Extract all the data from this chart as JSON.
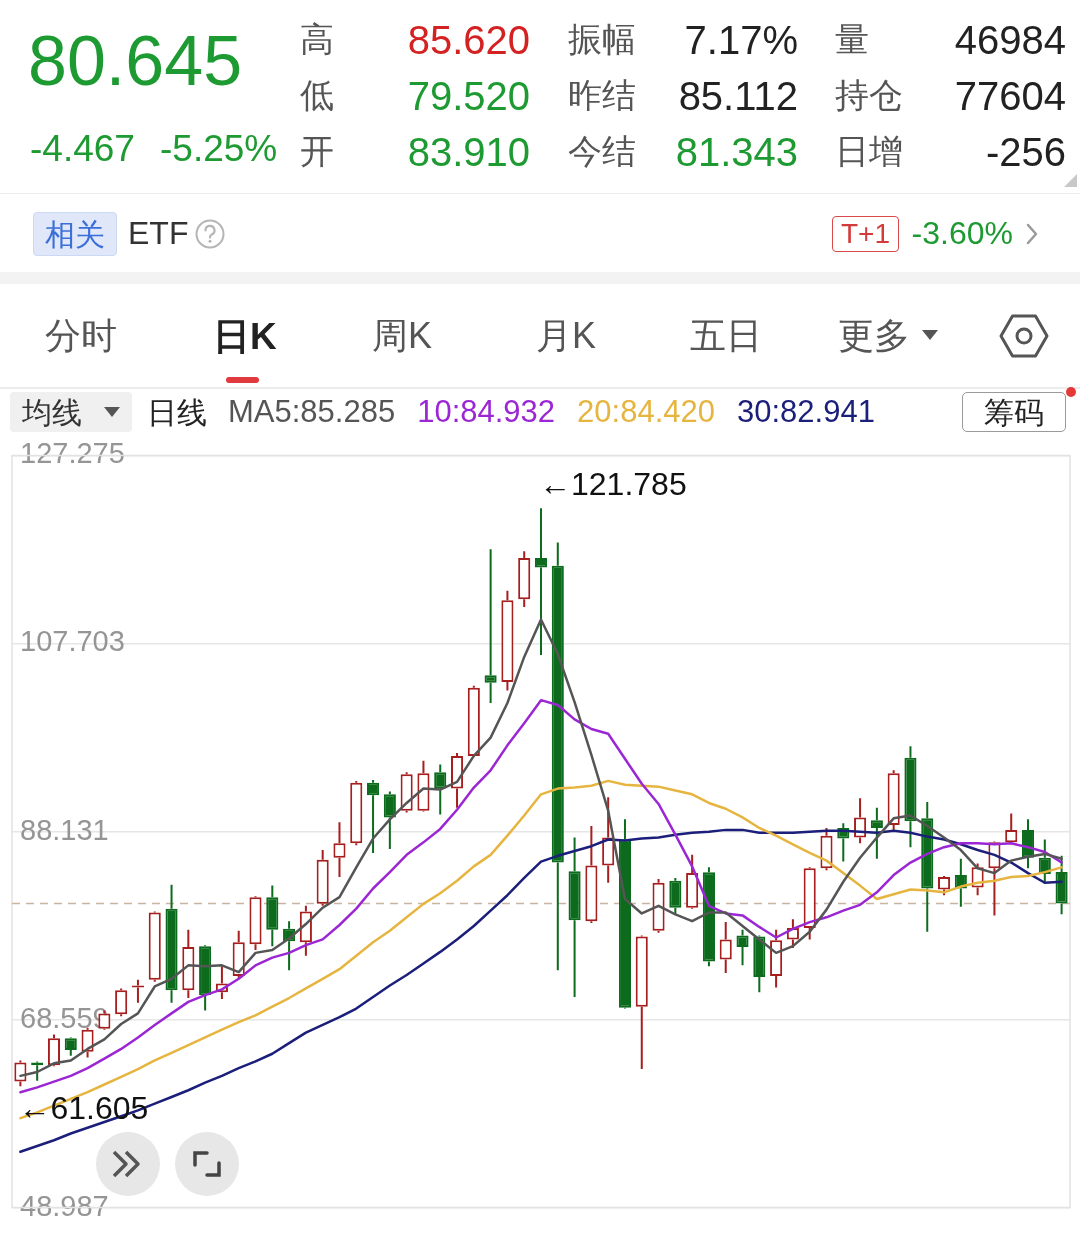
{
  "chart_data": {
    "type": "candlestick",
    "categories": [
      null,
      null,
      null,
      null,
      null,
      null,
      null,
      null,
      null,
      null,
      null,
      null,
      null,
      null,
      null,
      null,
      null,
      null,
      null,
      null,
      null,
      null,
      null,
      null,
      null,
      null,
      null,
      null,
      null,
      null,
      null,
      null,
      null,
      null,
      null,
      null,
      null,
      null,
      null,
      null,
      null,
      null,
      null,
      null,
      null,
      null,
      null,
      null,
      null,
      null,
      null,
      null,
      null,
      null,
      null,
      null,
      null,
      null,
      null,
      null,
      null,
      null,
      null
    ],
    "ohlc": [
      [
        62.1,
        64.3,
        61.605,
        64.1
      ],
      [
        64.1,
        64.2,
        62.2,
        63.8
      ],
      [
        63.8,
        67.0,
        63.7,
        66.6
      ],
      [
        66.6,
        66.7,
        64.8,
        65.4
      ],
      [
        65.2,
        67.7,
        64.6,
        67.5
      ],
      [
        67.6,
        69.5,
        67.5,
        69.2
      ],
      [
        69.1,
        71.8,
        68.9,
        71.6
      ],
      [
        71.9,
        72.7,
        70.3,
        72.1
      ],
      [
        72.7,
        79.8,
        72.5,
        79.7
      ],
      [
        80.1,
        82.6,
        70.3,
        71.6
      ],
      [
        71.6,
        77.9,
        70.8,
        76.1
      ],
      [
        76.2,
        76.3,
        69.5,
        71.1
      ],
      [
        71.4,
        74.1,
        70.7,
        72.3
      ],
      [
        73.1,
        77.8,
        72.9,
        76.6
      ],
      [
        76.4,
        81.4,
        75.8,
        81.3
      ],
      [
        81.3,
        82.5,
        76.2,
        77.9
      ],
      [
        78.0,
        78.8,
        73.7,
        76.7
      ],
      [
        76.6,
        80.4,
        75.2,
        79.8
      ],
      [
        80.6,
        86.2,
        80.4,
        85.2
      ],
      [
        85.4,
        89.1,
        83.4,
        86.9
      ],
      [
        86.9,
        93.4,
        86.7,
        93.2
      ],
      [
        93.2,
        93.5,
        85.9,
        91.9
      ],
      [
        92.0,
        92.3,
        86.3,
        89.6
      ],
      [
        90.3,
        94.3,
        90.1,
        94.1
      ],
      [
        90.3,
        95.5,
        90.2,
        94.2
      ],
      [
        94.3,
        95.1,
        89.9,
        92.6
      ],
      [
        92.6,
        96.3,
        90.6,
        96.0
      ],
      [
        96.0,
        103.3,
        95.9,
        103.1
      ],
      [
        104.4,
        117.5,
        101.5,
        103.6
      ],
      [
        103.7,
        113.2,
        102.8,
        112.2
      ],
      [
        112.3,
        117.3,
        111.5,
        116.6
      ],
      [
        116.6,
        121.785,
        106.5,
        115.6
      ],
      [
        115.8,
        118.2,
        73.7,
        84.9
      ],
      [
        84.0,
        87.5,
        70.9,
        78.9
      ],
      [
        78.8,
        88.7,
        78.6,
        84.6
      ],
      [
        84.6,
        91.7,
        82.8,
        87.5
      ],
      [
        87.3,
        89.4,
        69.7,
        69.8
      ],
      [
        69.9,
        77.3,
        63.4,
        77.2
      ],
      [
        77.8,
        83.2,
        77.6,
        82.8
      ],
      [
        83.0,
        83.3,
        79.5,
        80.2
      ],
      [
        80.2,
        85.7,
        80.1,
        83.8
      ],
      [
        83.9,
        84.4,
        74.1,
        74.6
      ],
      [
        74.8,
        78.7,
        73.4,
        76.9
      ],
      [
        77.3,
        77.9,
        74.2,
        76.1
      ],
      [
        77.2,
        77.3,
        71.4,
        73.0
      ],
      [
        73.1,
        77.9,
        71.9,
        76.8
      ],
      [
        76.9,
        79.0,
        76.0,
        78.1
      ],
      [
        78.1,
        84.4,
        76.9,
        84.3
      ],
      [
        84.3,
        88.5,
        84.1,
        87.7
      ],
      [
        88.5,
        89.0,
        85.0,
        87.4
      ],
      [
        87.5,
        91.6,
        86.9,
        89.6
      ],
      [
        89.3,
        90.6,
        85.3,
        88.5
      ],
      [
        88.8,
        94.5,
        88.3,
        94.2
      ],
      [
        95.8,
        97.0,
        86.5,
        89.2
      ],
      [
        89.5,
        91.2,
        77.7,
        82.2
      ],
      [
        82.1,
        83.5,
        81.5,
        83.4
      ],
      [
        83.6,
        85.3,
        80.3,
        82.2
      ],
      [
        82.3,
        84.8,
        81.5,
        84.4
      ],
      [
        84.3,
        87.1,
        79.4,
        87.0
      ],
      [
        87.0,
        90.0,
        86.8,
        88.3
      ],
      [
        88.3,
        89.4,
        84.3,
        85.4
      ],
      [
        85.4,
        87.3,
        82.7,
        83.7
      ],
      [
        83.91,
        85.62,
        79.52,
        80.645
      ]
    ],
    "colors": [
      "#a61e1e",
      "#0c6b1c",
      "#a61e1e",
      "#0c6b1c",
      "#a61e1e",
      "#a61e1e",
      "#a61e1e",
      "#a61e1e",
      "#a61e1e",
      "#0c6b1c",
      "#a61e1e",
      "#0c6b1c",
      "#a61e1e",
      "#a61e1e",
      "#a61e1e",
      "#0c6b1c",
      "#0c6b1c",
      "#a61e1e",
      "#a61e1e",
      "#a61e1e",
      "#a61e1e",
      "#0c6b1c",
      "#0c6b1c",
      "#a61e1e",
      "#a61e1e",
      "#0c6b1c",
      "#a61e1e",
      "#a61e1e",
      "#0c6b1c",
      "#a61e1e",
      "#a61e1e",
      "#0c6b1c",
      "#0c6b1c",
      "#0c6b1c",
      "#a61e1e",
      "#a61e1e",
      "#0c6b1c",
      "#a61e1e",
      "#a61e1e",
      "#0c6b1c",
      "#a61e1e",
      "#0c6b1c",
      "#a61e1e",
      "#0c6b1c",
      "#0c6b1c",
      "#a61e1e",
      "#a61e1e",
      "#a61e1e",
      "#a61e1e",
      "#0c6b1c",
      "#a61e1e",
      "#0c6b1c",
      "#a61e1e",
      "#0c6b1c",
      "#0c6b1c",
      "#a61e1e",
      "#0c6b1c",
      "#a61e1e",
      "#a61e1e",
      "#a61e1e",
      "#0c6b1c",
      "#0c6b1c",
      "#0c6b1c"
    ],
    "series": [
      {
        "type": "line",
        "name": "MA5:85.285",
        "color": "#555555",
        "values": [
          62.7,
          63.1,
          64.0,
          64.3,
          65.5,
          66.5,
          68.1,
          69.2,
          72.0,
          72.8,
          74.2,
          74.1,
          74.2,
          73.5,
          75.5,
          75.8,
          77.0,
          78.5,
          80.2,
          81.3,
          84.4,
          87.4,
          89.4,
          91.1,
          92.6,
          92.5,
          93.3,
          96.0,
          97.9,
          101.5,
          106.3,
          110.2,
          106.6,
          101.6,
          96.1,
          90.3,
          81.1,
          79.6,
          80.4,
          79.5,
          78.8,
          79.7,
          79.7,
          78.3,
          76.9,
          75.5,
          76.2,
          77.7,
          80.0,
          82.9,
          85.4,
          87.5,
          89.5,
          89.8,
          88.7,
          87.5,
          86.2,
          84.3,
          83.8,
          85.1,
          85.5,
          85.8,
          85.3
        ]
      },
      {
        "type": "line",
        "name": "10:84.932",
        "color": "#9b27d4",
        "values": [
          61.0,
          61.5,
          62.1,
          62.7,
          63.5,
          64.5,
          65.5,
          66.7,
          68.0,
          69.2,
          70.4,
          71.1,
          71.7,
          72.8,
          74.2,
          75.0,
          75.5,
          76.3,
          76.9,
          78.4,
          80.1,
          82.2,
          83.9,
          85.7,
          87.0,
          88.4,
          90.4,
          92.7,
          94.5,
          97.1,
          99.4,
          101.8,
          101.3,
          99.8,
          98.8,
          98.3,
          95.7,
          93.1,
          91.0,
          87.8,
          84.5,
          80.4,
          79.6,
          79.4,
          78.2,
          77.1,
          78.0,
          78.7,
          79.2,
          79.9,
          80.5,
          81.8,
          83.6,
          84.9,
          85.8,
          86.5,
          86.9,
          86.9,
          86.8,
          86.9,
          86.5,
          86.0,
          84.9
        ]
      },
      {
        "type": "line",
        "name": "20:84.420",
        "color": "#e6b540",
        "values": [
          58.3,
          58.9,
          59.6,
          60.3,
          61.0,
          61.8,
          62.6,
          63.4,
          64.3,
          65.1,
          65.9,
          66.7,
          67.5,
          68.3,
          69.0,
          69.9,
          70.8,
          71.8,
          72.8,
          73.8,
          75.2,
          76.6,
          77.8,
          79.2,
          80.6,
          81.7,
          83.0,
          84.5,
          85.7,
          87.7,
          89.8,
          92.0,
          92.6,
          92.7,
          92.9,
          93.4,
          93.0,
          92.9,
          92.8,
          92.4,
          92.0,
          91.1,
          90.5,
          89.6,
          88.5,
          87.7,
          86.8,
          85.9,
          85.1,
          83.8,
          82.5,
          81.1,
          81.6,
          82.1,
          82.0,
          81.8,
          82.4,
          82.8,
          83.0,
          83.4,
          83.5,
          83.9,
          84.4
        ]
      },
      {
        "type": "line",
        "name": "30:82.941",
        "color": "#1b1f7a",
        "values": [
          54.8,
          55.4,
          56.0,
          56.7,
          57.3,
          57.9,
          58.5,
          59.1,
          59.8,
          60.5,
          61.2,
          62.0,
          62.7,
          63.5,
          64.2,
          65.0,
          66.1,
          67.2,
          68.0,
          68.8,
          69.7,
          70.9,
          72.1,
          73.2,
          74.4,
          75.6,
          76.9,
          78.3,
          79.9,
          81.5,
          83.3,
          85.0,
          85.6,
          86.1,
          86.6,
          87.3,
          87.2,
          87.4,
          87.5,
          87.8,
          88.0,
          88.1,
          88.3,
          88.3,
          88.0,
          88.0,
          88.0,
          88.1,
          88.2,
          88.2,
          88.1,
          88.0,
          88.2,
          88.0,
          87.6,
          87.3,
          86.8,
          86.2,
          85.7,
          84.9,
          83.8,
          82.8,
          82.9
        ]
      }
    ],
    "ylim": [
      48.987,
      127.275
    ],
    "yticks": [
      48.987,
      68.559,
      88.131,
      107.703,
      127.275
    ],
    "grid": "y",
    "tick_labels": "y",
    "legend": "top",
    "marker": "none",
    "ref_lines": [
      {
        "axis": "y",
        "value": 80.645,
        "color": "#c9b5a2",
        "line_style": "dashed"
      }
    ],
    "annotations": [
      "80.645",
      "-4.467",
      "-5.25%",
      "高",
      "85.620",
      "低",
      "79.520",
      "开",
      "83.910",
      "振幅",
      "7.17%",
      "昨结",
      "85.112",
      "今结",
      "81.343",
      "量",
      "46984",
      "持仓",
      "77604",
      "日增",
      "-256",
      "相关",
      "ETF",
      "T+1",
      "-3.60%",
      "分时",
      "日K",
      "周K",
      "月K",
      "五日",
      "更多",
      "均线",
      "日线",
      "筹码",
      "←121.785",
      "←61.605"
    ]
  }
}
